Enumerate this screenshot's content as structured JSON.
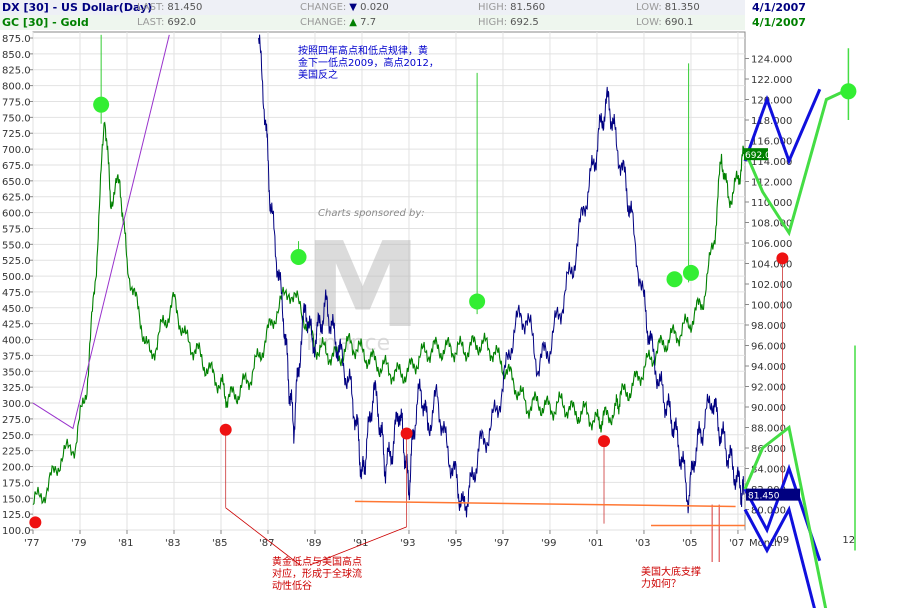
{
  "header": {
    "dx": {
      "symbol": "DX [30] - US Dollar(Day)",
      "last_label": "LAST:",
      "last": "81.450",
      "change_label": "CHANGE:",
      "change_arrow": "▼",
      "change": "0.020",
      "high_label": "HIGH:",
      "high": "81.560",
      "low_label": "LOW:",
      "low": "81.350",
      "date": "4/1/2007",
      "color": "#000080"
    },
    "gc": {
      "symbol": "GC [30] - Gold",
      "last_label": "LAST:",
      "last": "692.0",
      "change_label": "CHANGE:",
      "change_arrow": "▲",
      "change": "7.7",
      "high_label": "HIGH:",
      "high": "692.5",
      "low_label": "LOW:",
      "low": "690.1",
      "date": "4/1/2007",
      "color": "#008000"
    }
  },
  "sponsor": {
    "text": "Charts sponsored by:",
    "logo": "M",
    "brand": "Finance"
  },
  "annotations": {
    "top_note": "按照四年高点和低点规律，黄\n金下一低点2009，高点2012，\n美国反之",
    "bottom_left": "黄金低点与美国高点\n对应，形成于全球流\n动性低谷",
    "bottom_right": "美国大底支撑\n力如何？"
  },
  "chart_data": {
    "type": "line",
    "x_ticks": [
      "'77",
      "'79",
      "'81",
      "'83",
      "'85",
      "'87",
      "'89",
      "'91",
      "'93",
      "'95",
      "'97",
      "'99",
      "'01",
      "'03",
      "'05",
      "'07"
    ],
    "x_extra_labels": {
      "month": "Month",
      "m09": "09",
      "m12": "12"
    },
    "x_range": [
      1977,
      2007.3
    ],
    "left_axis": {
      "ylim": [
        100,
        875
      ],
      "ticks": [
        100,
        125,
        150,
        175,
        200,
        225,
        250,
        275,
        300,
        325,
        350,
        375,
        400,
        425,
        450,
        475,
        500,
        525,
        550,
        575,
        600,
        625,
        650,
        675,
        700,
        725,
        750,
        775,
        800,
        825,
        850,
        875
      ],
      "tick_format": "0.0"
    },
    "right_axis": {
      "ylim": [
        78,
        126
      ],
      "ticks": [
        80,
        82,
        84,
        86,
        88,
        90,
        92,
        94,
        96,
        98,
        100,
        102,
        104,
        106,
        108,
        110,
        112,
        114,
        116,
        118,
        120,
        122,
        124
      ],
      "tick_format": "0.000"
    },
    "last_value_tags": {
      "gold": "692.0",
      "dollar": "81.450"
    },
    "series": [
      {
        "name": "GC [30] - Gold",
        "axis": "left",
        "color": "#008000",
        "x": [
          1977,
          1977.6,
          1978.2,
          1978.8,
          1979.3,
          1979.7,
          1980.05,
          1980.3,
          1980.7,
          1981,
          1981.5,
          1982,
          1982.5,
          1983,
          1983.5,
          1984,
          1984.5,
          1985,
          1985.3,
          1985.8,
          1986.3,
          1986.8,
          1987.3,
          1987.9,
          1988.5,
          1989,
          1989.5,
          1990,
          1990.5,
          1991,
          1991.5,
          1992,
          1992.5,
          1993,
          1993.5,
          1994,
          1994.5,
          1995,
          1995.5,
          1996,
          1996.5,
          1997,
          1997.5,
          1998,
          1998.5,
          1999,
          1999.5,
          2000,
          2000.5,
          2001,
          2001.3,
          2001.8,
          2002,
          2002.5,
          2003,
          2003.5,
          2004,
          2004.5,
          2005,
          2005.5,
          2006,
          2006.3,
          2006.6,
          2007,
          2007.25
        ],
        "y": [
          140,
          165,
          215,
          235,
          330,
          520,
          760,
          620,
          650,
          520,
          440,
          370,
          420,
          460,
          400,
          380,
          350,
          330,
          305,
          320,
          345,
          390,
          440,
          480,
          440,
          390,
          380,
          370,
          395,
          380,
          365,
          355,
          345,
          350,
          375,
          385,
          385,
          385,
          385,
          395,
          385,
          360,
          330,
          295,
          300,
          290,
          300,
          285,
          285,
          270,
          275,
          290,
          310,
          325,
          355,
          380,
          400,
          410,
          430,
          460,
          560,
          690,
          620,
          650,
          692
        ]
      },
      {
        "name": "DX [30] - US Dollar(Day)",
        "axis": "right",
        "color": "#000080",
        "x": [
          1986.6,
          1986.9,
          1987.1,
          1987.4,
          1987.7,
          1987.9,
          1988.1,
          1988.3,
          1988.6,
          1988.9,
          1989.2,
          1989.5,
          1989.8,
          1990.1,
          1990.5,
          1990.8,
          1991.0,
          1991.2,
          1991.5,
          1991.8,
          1992.0,
          1992.3,
          1992.6,
          1992.8,
          1993.0,
          1993.2,
          1993.5,
          1993.8,
          1994.2,
          1994.6,
          1995.0,
          1995.3,
          1995.6,
          1996.0,
          1996.5,
          1997.0,
          1997.5,
          1998.0,
          1998.5,
          1999.0,
          1999.5,
          2000.0,
          2000.5,
          2000.9,
          2001.2,
          2001.5,
          2001.8,
          2002.2,
          2002.5,
          2003.0,
          2003.3,
          2003.7,
          2004.0,
          2004.3,
          2004.6,
          2004.9,
          2005.2,
          2005.5,
          2005.9,
          2006.2,
          2006.5,
          2006.8,
          2007.1,
          2007.25
        ],
        "y": [
          126,
          118,
          110,
          104,
          98,
          92,
          88,
          94,
          100,
          96,
          98,
          100,
          97,
          95,
          92,
          88,
          83,
          86,
          92,
          88,
          84,
          86,
          90,
          86,
          82,
          88,
          92,
          88,
          91,
          86,
          83,
          80,
          82,
          86,
          88,
          92,
          98,
          99,
          94,
          96,
          100,
          104,
          110,
          114,
          118,
          120,
          116,
          112,
          108,
          100,
          96,
          92,
          90,
          88,
          85,
          81,
          86,
          88,
          91,
          88,
          86,
          84,
          82,
          81.45
        ]
      }
    ],
    "projections": {
      "blue": [
        {
          "x": [
            2007.3,
            2008.3,
            2009.3,
            2010.7
          ],
          "y": [
            114,
            120,
            114,
            121
          ]
        },
        {
          "x": [
            2007.3,
            2008.3,
            2009.3,
            2010.7
          ],
          "y": [
            82,
            78,
            84,
            75
          ]
        },
        {
          "x": [
            2007.3,
            2008.3,
            2009.3,
            2010.5
          ],
          "y": [
            80,
            76,
            80,
            70
          ]
        }
      ],
      "green": [
        {
          "x": [
            2007.3,
            2008.1,
            2009.3,
            2011.0,
            2012.0
          ],
          "y": [
            115,
            111,
            107,
            120,
            121
          ]
        },
        {
          "x": [
            2007.3,
            2008.1,
            2009.3,
            2011.0
          ],
          "y": [
            82,
            86,
            88,
            70
          ]
        }
      ]
    },
    "markers": {
      "green_dots": [
        {
          "x": 1979.9,
          "y": 770
        },
        {
          "x": 1988.3,
          "y": 530
        },
        {
          "x": 1995.9,
          "y": 460
        },
        {
          "x": 2004.3,
          "y": 495
        },
        {
          "x": 2005,
          "y": 505
        },
        {
          "x": 2012.0,
          "y": 120.8,
          "axis": "right"
        }
      ],
      "red_dots": [
        {
          "x": 1977.1,
          "y": 112
        },
        {
          "x": 1985.2,
          "y": 258
        },
        {
          "x": 1992.9,
          "y": 252
        },
        {
          "x": 2001.3,
          "y": 240
        },
        {
          "x": 2009.0,
          "y": 104.5,
          "axis": "right"
        }
      ]
    }
  }
}
